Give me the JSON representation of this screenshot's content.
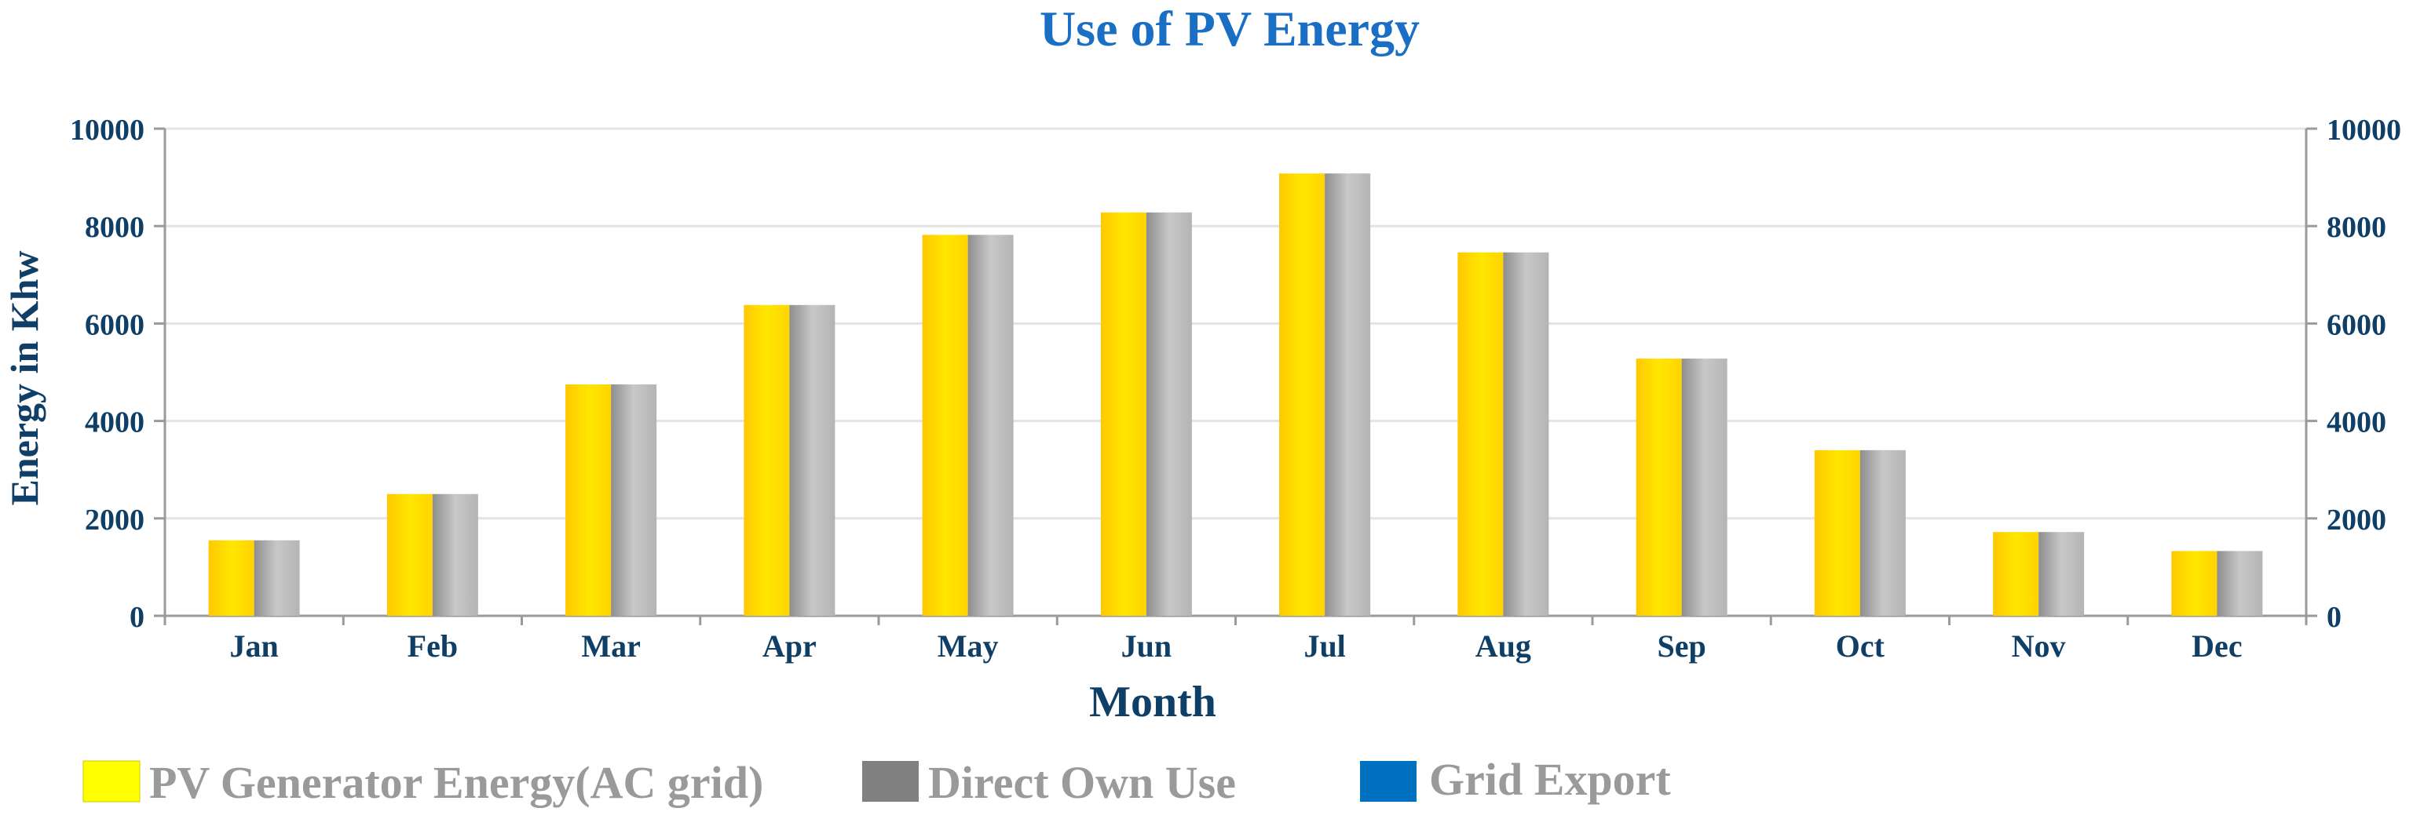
{
  "chart_data": {
    "type": "bar",
    "title": "Use of PV Energy",
    "xlabel": "Month",
    "ylabel": "Energy in Khw",
    "ylim": [
      0,
      10000
    ],
    "yticks": [
      0,
      2000,
      4000,
      6000,
      8000,
      10000
    ],
    "secondary_yticks": [
      0,
      2000,
      4000,
      6000,
      8000,
      10000
    ],
    "grid": true,
    "legend_position": "bottom",
    "categories": [
      "Jan",
      "Feb",
      "Mar",
      "Apr",
      "May",
      "Jun",
      "Jul",
      "Aug",
      "Sep",
      "Oct",
      "Nov",
      "Dec"
    ],
    "series": [
      {
        "name": "PV Generator Energy(AC grid)",
        "color": "#ffd400",
        "values": [
          1550,
          2500,
          4750,
          6380,
          7820,
          8280,
          9080,
          7460,
          5280,
          3400,
          1720,
          1330
        ]
      },
      {
        "name": "Direct Own Use",
        "color": "#a8a8a8",
        "values": [
          1550,
          2500,
          4750,
          6380,
          7820,
          8280,
          9080,
          7460,
          5280,
          3400,
          1720,
          1330
        ]
      },
      {
        "name": "Grid Export",
        "color": "#0a6fc2",
        "values": [
          0,
          0,
          0,
          0,
          0,
          0,
          0,
          0,
          0,
          0,
          0,
          0
        ]
      }
    ]
  },
  "legend_swatches": {
    "pv": "#ffff00",
    "own": "#808080",
    "export": "#0070c0"
  }
}
